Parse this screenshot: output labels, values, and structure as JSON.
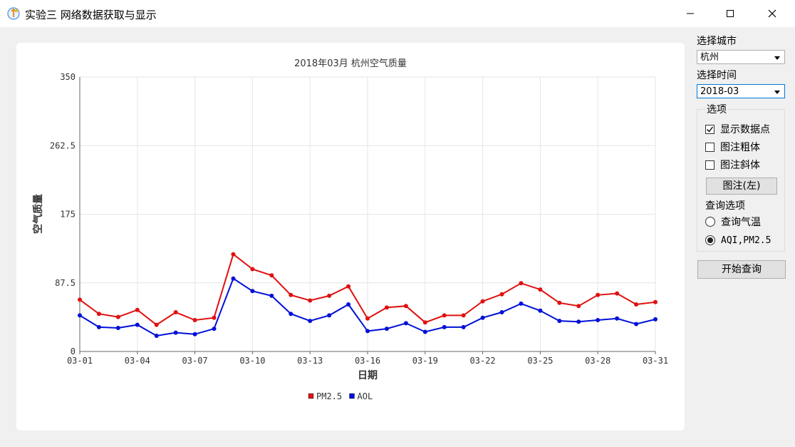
{
  "window": {
    "title": "实验三 网络数据获取与显示"
  },
  "controls": {
    "city_label": "选择城市",
    "city_value": "杭州",
    "time_label": "选择时间",
    "time_value": "2018-03",
    "options_group_title": "选项",
    "show_points_label": "显示数据点",
    "show_points_checked": true,
    "legend_bold_label": "图注粗体",
    "legend_bold_checked": false,
    "legend_italic_label": "图注斜体",
    "legend_italic_checked": false,
    "legend_pos_button": "图注(左)",
    "query_options_label": "查询选项",
    "radio_temp_label": "查询气温",
    "radio_aqi_label": "AQI,PM2.5",
    "radio_selected": "aqi",
    "start_button": "开始查询"
  },
  "colors": {
    "pm25": "#e01010",
    "aqi": "#0010d8",
    "grid": "#e6e6e6"
  },
  "chart_data": {
    "type": "line",
    "title": "2018年03月 杭州空气质量",
    "xlabel": "日期",
    "ylabel": "空气质量",
    "ylim": [
      0,
      350
    ],
    "yticks": [
      "0",
      "87.5",
      "175",
      "262.5",
      "350"
    ],
    "x": [
      "03-01",
      "03-02",
      "03-03",
      "03-04",
      "03-05",
      "03-06",
      "03-07",
      "03-08",
      "03-09",
      "03-10",
      "03-11",
      "03-12",
      "03-13",
      "03-14",
      "03-15",
      "03-16",
      "03-17",
      "03-18",
      "03-19",
      "03-20",
      "03-21",
      "03-22",
      "03-23",
      "03-24",
      "03-25",
      "03-26",
      "03-27",
      "03-28",
      "03-29",
      "03-30",
      "03-31"
    ],
    "xticks": [
      "03-01",
      "03-04",
      "03-07",
      "03-10",
      "03-13",
      "03-16",
      "03-19",
      "03-22",
      "03-25",
      "03-28",
      "03-31"
    ],
    "grid": true,
    "legend_position": "bottom",
    "series": [
      {
        "name": "PM2.5",
        "color": "#e01010",
        "values": [
          66,
          48,
          44,
          53,
          34,
          50,
          40,
          43,
          124,
          105,
          97,
          72,
          65,
          71,
          83,
          42,
          56,
          58,
          37,
          46,
          46,
          64,
          73,
          87,
          79,
          62,
          58,
          72,
          74,
          60,
          63
        ]
      },
      {
        "name": "AOL",
        "color": "#0010d8",
        "values": [
          46,
          31,
          30,
          34,
          20,
          24,
          22,
          29,
          93,
          77,
          71,
          48,
          39,
          46,
          60,
          26,
          29,
          36,
          25,
          31,
          31,
          43,
          50,
          61,
          52,
          39,
          38,
          40,
          42,
          35,
          41
        ]
      }
    ]
  }
}
